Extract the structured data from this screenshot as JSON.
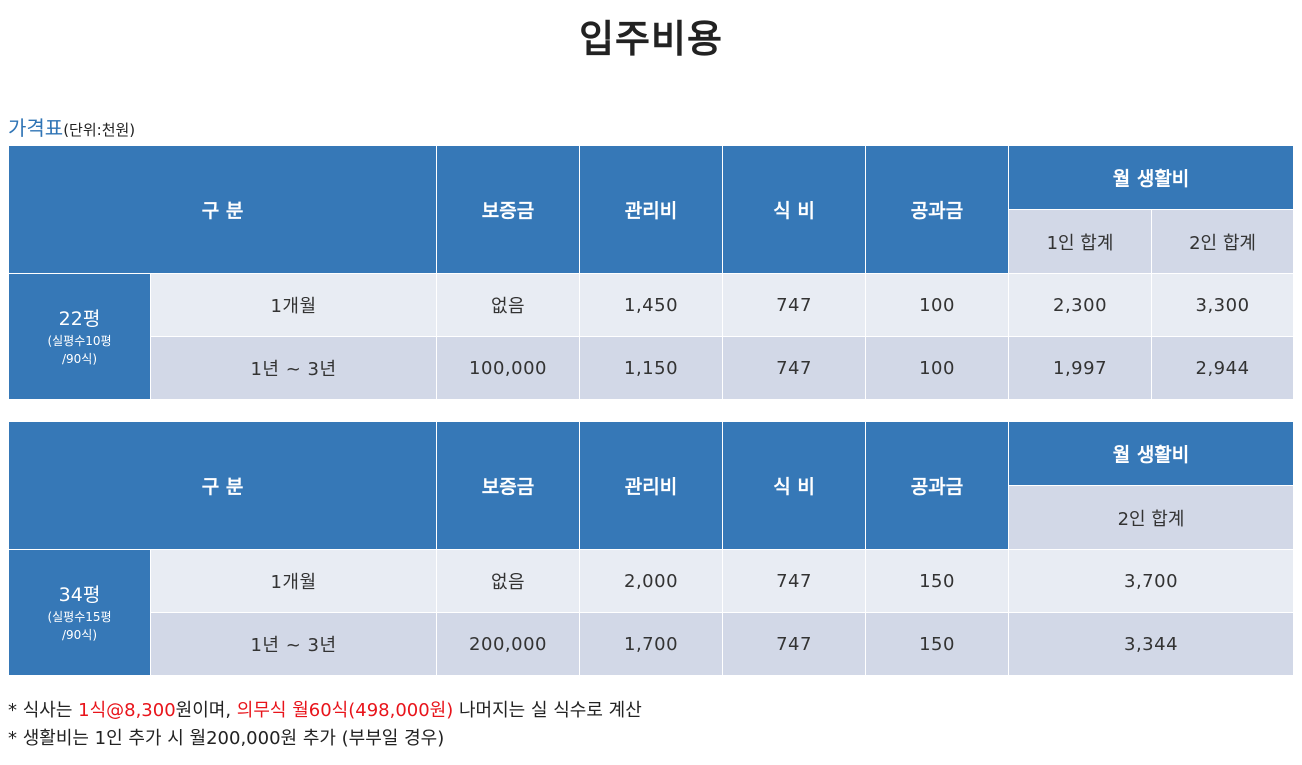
{
  "title": "입주비용",
  "caption": {
    "main": "가격표",
    "unit": "(단위:천원)"
  },
  "headers": {
    "category": "구 분",
    "deposit": "보증금",
    "management": "관리비",
    "meal": "식 비",
    "utilities": "공과금",
    "monthly": "월 생활비",
    "one_person": "1인 합계",
    "two_person": "2인 합계"
  },
  "tables": [
    {
      "size": "22평",
      "size_note_1": "(실평수10평",
      "size_note_2": "/90식)",
      "rows": [
        {
          "period": "1개월",
          "deposit": "없음",
          "management": "1,450",
          "meal": "747",
          "utilities": "100",
          "one_total": "2,300",
          "two_total": "3,300"
        },
        {
          "period": "1년 ~ 3년",
          "deposit": "100,000",
          "management": "1,150",
          "meal": "747",
          "utilities": "100",
          "one_total": "1,997",
          "two_total": "2,944"
        }
      ]
    },
    {
      "size": "34평",
      "size_note_1": "(실평수15평",
      "size_note_2": "/90식)",
      "rows": [
        {
          "period": "1개월",
          "deposit": "없음",
          "management": "2,000",
          "meal": "747",
          "utilities": "150",
          "two_total": "3,700"
        },
        {
          "period": "1년 ~ 3년",
          "deposit": "200,000",
          "management": "1,700",
          "meal": "747",
          "utilities": "150",
          "two_total": "3,344"
        }
      ]
    }
  ],
  "notes": {
    "line1_a": "* 식사는 ",
    "line1_red1": "1식@8,300",
    "line1_b": "원이며, ",
    "line1_red2": "의무식  월60식(498,000원)",
    "line1_c": " 나머지는 실 식수로 계산",
    "line2": "* 생활비는 1인 추가 시 월200,000원 추가 (부부일 경우)"
  }
}
